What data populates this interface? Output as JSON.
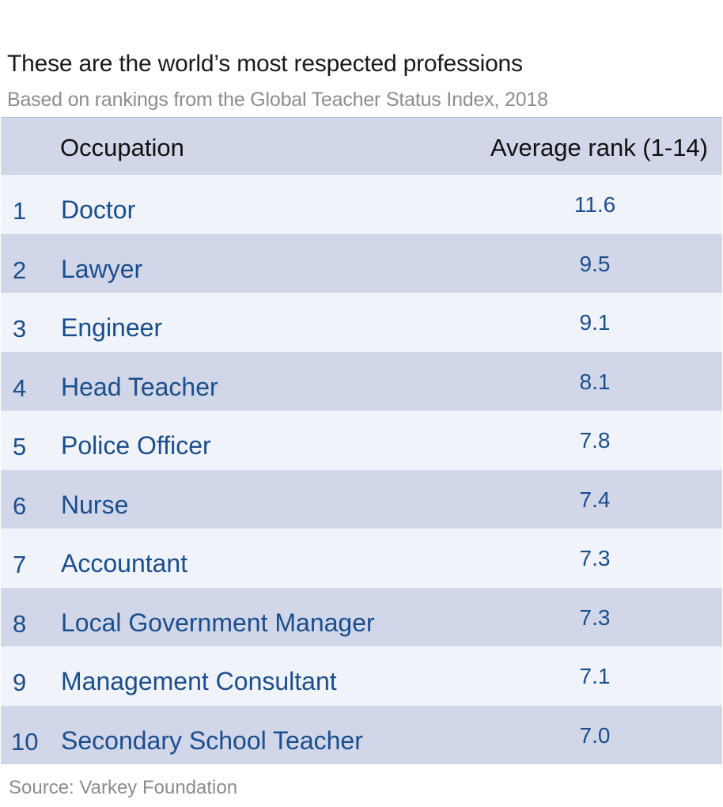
{
  "title": "These are the world’s most respected professions",
  "subtitle": "Based on rankings from the Global Teacher Status Index, 2018",
  "source": "Source: Varkey Foundation",
  "colors": {
    "header_band": "#d1d6e9",
    "row_light": "#f1f3fa",
    "row_dark": "#d1d6e9",
    "value_text": "#1a4e8c",
    "title_text": "#1a1a1a",
    "muted_text": "#8c8c8c"
  },
  "chart_data": {
    "type": "table",
    "title": "These are the world’s most respected professions",
    "subtitle": "Based on rankings from the Global Teacher Status Index, 2018",
    "columns": [
      "",
      "Occupation",
      "Average rank (1-14)"
    ],
    "rows": [
      {
        "rank": "1",
        "occupation": "Doctor",
        "value": "11.6"
      },
      {
        "rank": "2",
        "occupation": "Lawyer",
        "value": "9.5"
      },
      {
        "rank": "3",
        "occupation": "Engineer",
        "value": "9.1"
      },
      {
        "rank": "4",
        "occupation": "Head Teacher",
        "value": "8.1"
      },
      {
        "rank": "5",
        "occupation": "Police Officer",
        "value": "7.8"
      },
      {
        "rank": "6",
        "occupation": "Nurse",
        "value": "7.4"
      },
      {
        "rank": "7",
        "occupation": "Accountant",
        "value": "7.3"
      },
      {
        "rank": "8",
        "occupation": "Local Government Manager",
        "value": "7.3"
      },
      {
        "rank": "9",
        "occupation": "Management Consultant",
        "value": "7.1"
      },
      {
        "rank": "10",
        "occupation": "Secondary School Teacher",
        "value": "7.0"
      }
    ],
    "source": "Source: Varkey Foundation"
  }
}
